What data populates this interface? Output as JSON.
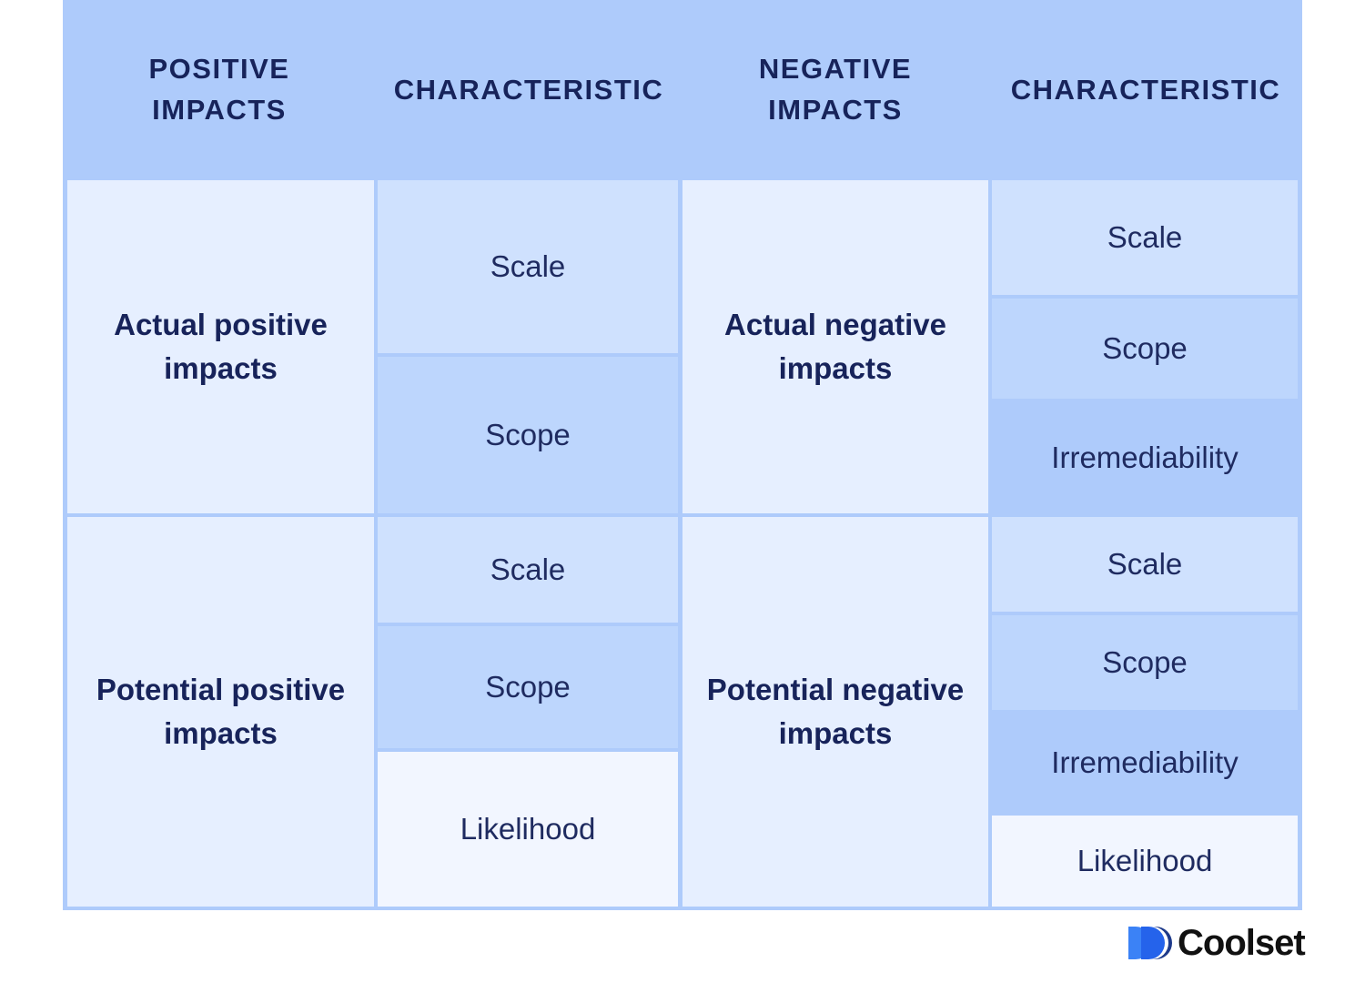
{
  "header": {
    "col1": "POSITIVE\nIMPACTS",
    "col2": "CHARACTERISTIC",
    "col3": "NEGATIVE\nIMPACTS",
    "col4": "CHARACTERISTIC"
  },
  "rows": {
    "actual_positive": {
      "label": "Actual positive\nimpacts",
      "characteristics": [
        "Scale",
        "Scope"
      ]
    },
    "actual_negative": {
      "label": "Actual negative\nimpacts",
      "characteristics": [
        "Scale",
        "Scope",
        "Irremediability"
      ]
    },
    "potential_positive": {
      "label": "Potential positive\nimpacts",
      "characteristics": [
        "Scale",
        "Scope",
        "Likelihood"
      ]
    },
    "potential_negative": {
      "label": "Potential negative\nimpacts",
      "characteristics": [
        "Scale",
        "Scope",
        "Irremediability",
        "Likelihood"
      ]
    }
  },
  "brand": {
    "name": "Coolset",
    "logo_icon": "coolset-logo-icon",
    "colors": {
      "border": "#aecbfb",
      "light": "#e6efff",
      "mid": "#cfe1fe",
      "deep": "#bdd6fd",
      "pale": "#f2f6ff",
      "text": "#17235a",
      "logo_blue": "#2563eb"
    }
  }
}
